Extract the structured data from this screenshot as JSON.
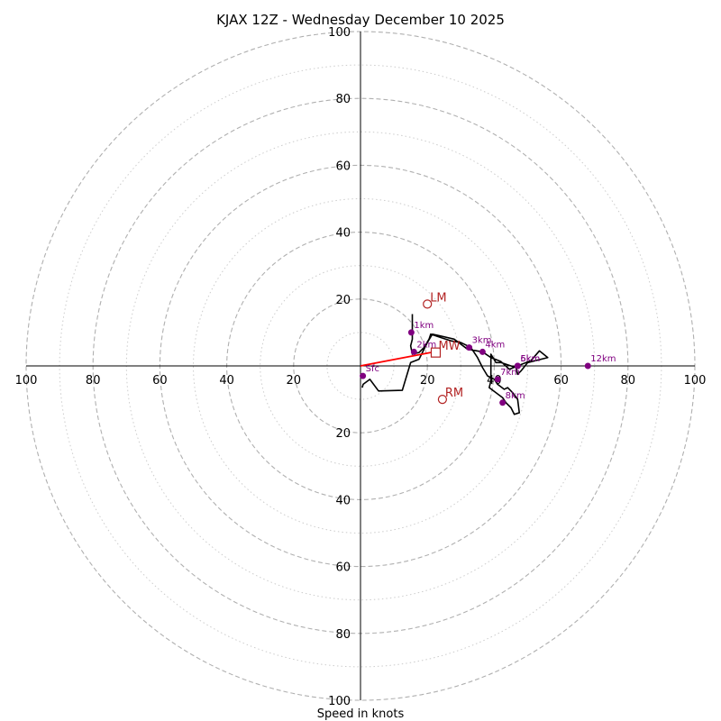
{
  "chart_data": {
    "type": "hodograph",
    "title": "KJAX 12Z - Wednesday December 10 2025",
    "xlabel": "Speed in knots",
    "max_speed": 100,
    "ring_values_major": [
      20,
      40,
      60,
      80,
      100
    ],
    "ring_values_minor": [
      10,
      30,
      50,
      70,
      90
    ],
    "axis_tick_labels": [
      "20",
      "40",
      "60",
      "80",
      "100"
    ],
    "hodograph_trace": [
      [
        0.5,
        -6.5
      ],
      [
        0.8,
        -5.5
      ],
      [
        2.8,
        -4.0
      ],
      [
        5.4,
        -7.5
      ],
      [
        12.5,
        -7.3
      ],
      [
        15.0,
        1.0
      ],
      [
        17.5,
        2.0
      ],
      [
        20.0,
        7.0
      ],
      [
        21.5,
        9.5
      ],
      [
        23.8,
        9.0
      ],
      [
        28.0,
        8.0
      ],
      [
        32.0,
        5.0
      ],
      [
        36.5,
        4.2
      ],
      [
        39.0,
        2.5
      ],
      [
        42.0,
        1.3
      ],
      [
        44.5,
        -1.0
      ],
      [
        47.0,
        0.0
      ],
      [
        51.0,
        1.6
      ],
      [
        53.5,
        4.5
      ],
      [
        56.0,
        2.5
      ],
      [
        50.0,
        1.0
      ],
      [
        48.0,
        -1.5
      ],
      [
        47.0,
        -2.5
      ],
      [
        46.5,
        -0.5
      ],
      [
        45.0,
        0.0
      ],
      [
        42.0,
        1.0
      ],
      [
        40.5,
        1.0
      ],
      [
        39.0,
        3.5
      ],
      [
        39.0,
        -4.5
      ],
      [
        38.5,
        -6.5
      ],
      [
        42.5,
        -9.5
      ],
      [
        43.5,
        -11.0
      ],
      [
        45.0,
        -12.5
      ],
      [
        46.0,
        -14.5
      ],
      [
        47.5,
        -14.0
      ],
      [
        47.0,
        -10.0
      ],
      [
        45.5,
        -8.0
      ],
      [
        44.0,
        -6.5
      ],
      [
        43.0,
        -7.0
      ],
      [
        41.0,
        -5.5
      ],
      [
        40.0,
        -4.0
      ],
      [
        38.0,
        -3.0
      ],
      [
        36.5,
        -0.5
      ],
      [
        35.0,
        2.5
      ],
      [
        33.0,
        5.5
      ],
      [
        30.0,
        7.0
      ],
      [
        27.0,
        7.5
      ],
      [
        24.0,
        8.5
      ],
      [
        21.0,
        9.5
      ],
      [
        20.5,
        8.0
      ],
      [
        19.0,
        5.5
      ],
      [
        17.5,
        4.0
      ],
      [
        15.5,
        3.5
      ],
      [
        15.0,
        6.0
      ],
      [
        15.5,
        8.0
      ],
      [
        15.5,
        10.0
      ],
      [
        15.5,
        15.5
      ]
    ],
    "height_markers": [
      {
        "label": "Sfc",
        "u": 0.7,
        "v": -3.0
      },
      {
        "label": "1km",
        "u": 15.2,
        "v": 10.0
      },
      {
        "label": "2km",
        "u": 16.0,
        "v": 4.2
      },
      {
        "label": "3km",
        "u": 32.5,
        "v": 5.5
      },
      {
        "label": "4km",
        "u": 36.5,
        "v": 4.2
      },
      {
        "label": "5km",
        "u": 47.0,
        "v": 0.0
      },
      {
        "label": "6km",
        "u": 47.0,
        "v": 0.0
      },
      {
        "label": "7km",
        "u": 41.0,
        "v": -4.0
      },
      {
        "label": "8km",
        "u": 42.5,
        "v": -11.0
      },
      {
        "label": "12km",
        "u": 68.0,
        "v": 0.0
      }
    ],
    "storm_motion": {
      "LM": {
        "label": "LM",
        "u": 20.0,
        "v": 18.5
      },
      "RM": {
        "label": "RM",
        "u": 24.5,
        "v": -10.0
      },
      "MW": {
        "label": "MW",
        "u": 22.5,
        "v": 4.0
      }
    },
    "mean_wind_vector_to": [
      21.0,
      4.0
    ],
    "colors": {
      "trace": "#000000",
      "marker": "#800080",
      "storm_motion": "#b22222",
      "mean_wind_vector": "#ff0000",
      "ring_major": "#b0b0b0",
      "ring_minor": "#cccccc"
    }
  }
}
